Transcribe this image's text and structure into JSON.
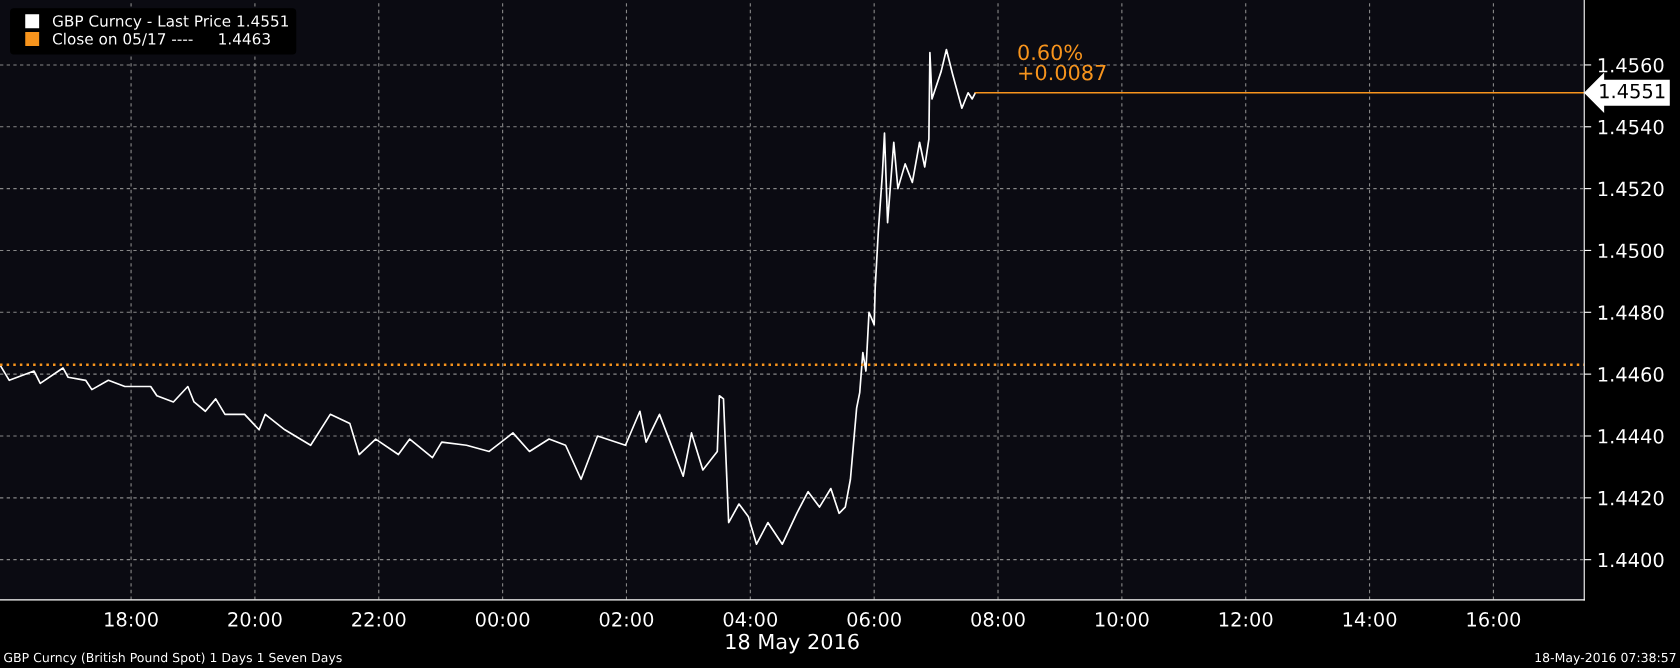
{
  "chart_data": {
    "type": "line",
    "x": [
      "2016-05-17T15:53",
      "2016-05-17T16:02",
      "2016-05-17T16:26",
      "2016-05-17T16:32",
      "2016-05-17T16:54",
      "2016-05-17T16:59",
      "2016-05-17T17:16",
      "2016-05-17T17:22",
      "2016-05-17T17:38",
      "2016-05-17T17:54",
      "2016-05-17T18:19",
      "2016-05-17T18:25",
      "2016-05-17T18:41",
      "2016-05-17T18:55",
      "2016-05-17T19:01",
      "2016-05-17T19:12",
      "2016-05-17T19:22",
      "2016-05-17T19:31",
      "2016-05-17T19:50",
      "2016-05-17T20:04",
      "2016-05-17T20:10",
      "2016-05-17T20:29",
      "2016-05-17T20:54",
      "2016-05-17T21:13",
      "2016-05-17T21:32",
      "2016-05-17T21:41",
      "2016-05-17T21:57",
      "2016-05-17T22:19",
      "2016-05-17T22:30",
      "2016-05-17T22:52",
      "2016-05-17T23:01",
      "2016-05-17T23:25",
      "2016-05-17T23:47",
      "2016-05-18T00:10",
      "2016-05-18T00:26",
      "2016-05-18T00:45",
      "2016-05-18T01:01",
      "2016-05-18T01:16",
      "2016-05-18T01:32",
      "2016-05-18T01:59",
      "2016-05-18T02:13",
      "2016-05-18T02:19",
      "2016-05-18T02:32",
      "2016-05-18T02:55",
      "2016-05-18T03:03",
      "2016-05-18T03:14",
      "2016-05-18T03:28",
      "2016-05-18T03:30",
      "2016-05-18T03:34",
      "2016-05-18T03:39",
      "2016-05-18T03:49",
      "2016-05-18T03:58",
      "2016-05-18T04:06",
      "2016-05-18T04:17",
      "2016-05-18T04:31",
      "2016-05-18T04:45",
      "2016-05-18T04:56",
      "2016-05-18T05:07",
      "2016-05-18T05:18",
      "2016-05-18T05:26",
      "2016-05-18T05:32",
      "2016-05-18T05:37",
      "2016-05-18T05:43",
      "2016-05-18T05:46",
      "2016-05-18T05:49",
      "2016-05-18T05:52",
      "2016-05-18T05:55",
      "2016-05-18T06:00",
      "2016-05-18T06:01",
      "2016-05-18T06:04",
      "2016-05-18T06:08",
      "2016-05-18T06:10",
      "2016-05-18T06:13",
      "2016-05-18T06:19",
      "2016-05-18T06:23",
      "2016-05-18T06:30",
      "2016-05-18T06:37",
      "2016-05-18T06:44",
      "2016-05-18T06:49",
      "2016-05-18T06:53",
      "2016-05-18T06:54",
      "2016-05-18T06:56",
      "2016-05-18T07:05",
      "2016-05-18T07:10",
      "2016-05-18T07:16",
      "2016-05-18T07:25",
      "2016-05-18T07:31",
      "2016-05-18T07:35",
      "2016-05-18T07:38"
    ],
    "series": [
      {
        "name": "GBP Curncy - Last Price 1.4551",
        "color": "#ffffff",
        "values": [
          1.4463,
          1.4458,
          1.4461,
          1.4457,
          1.4462,
          1.4459,
          1.4458,
          1.4455,
          1.4458,
          1.4456,
          1.4456,
          1.4453,
          1.4451,
          1.4456,
          1.4451,
          1.4448,
          1.4452,
          1.4447,
          1.4447,
          1.4442,
          1.4447,
          1.4442,
          1.4437,
          1.4447,
          1.4444,
          1.4434,
          1.4439,
          1.4434,
          1.4439,
          1.4433,
          1.4438,
          1.4437,
          1.4435,
          1.4441,
          1.4435,
          1.4439,
          1.4437,
          1.4426,
          1.444,
          1.4437,
          1.4448,
          1.4438,
          1.4447,
          1.4427,
          1.4441,
          1.4429,
          1.4435,
          1.4453,
          1.4452,
          1.4412,
          1.4418,
          1.4414,
          1.4405,
          1.4412,
          1.4405,
          1.4415,
          1.4422,
          1.4417,
          1.4423,
          1.4415,
          1.4417,
          1.4426,
          1.4449,
          1.4454,
          1.4467,
          1.4461,
          1.448,
          1.4476,
          1.4488,
          1.4506,
          1.4525,
          1.4538,
          1.4509,
          1.4535,
          1.452,
          1.4528,
          1.4522,
          1.4535,
          1.4527,
          1.4536,
          1.4564,
          1.4549,
          1.4558,
          1.4565,
          1.4557,
          1.4546,
          1.4551,
          1.4549,
          1.4551
        ]
      }
    ],
    "xlabel": "18 May 2016",
    "xlim": [
      "2016-05-17T15:53",
      "2016-05-18T17:28"
    ],
    "xticks": [
      {
        "value": "2016-05-17T18:00",
        "label": "18:00"
      },
      {
        "value": "2016-05-17T20:00",
        "label": "20:00"
      },
      {
        "value": "2016-05-17T22:00",
        "label": "22:00"
      },
      {
        "value": "2016-05-18T00:00",
        "label": "00:00"
      },
      {
        "value": "2016-05-18T02:00",
        "label": "02:00"
      },
      {
        "value": "2016-05-18T04:00",
        "label": "04:00"
      },
      {
        "value": "2016-05-18T06:00",
        "label": "06:00"
      },
      {
        "value": "2016-05-18T08:00",
        "label": "08:00"
      },
      {
        "value": "2016-05-18T10:00",
        "label": "10:00"
      },
      {
        "value": "2016-05-18T12:00",
        "label": "12:00"
      },
      {
        "value": "2016-05-18T14:00",
        "label": "14:00"
      },
      {
        "value": "2016-05-18T16:00",
        "label": "16:00"
      }
    ],
    "ylim": [
      1.4387,
      1.4581
    ],
    "yticks": [
      {
        "value": 1.44,
        "label": "1.4400"
      },
      {
        "value": 1.442,
        "label": "1.4420"
      },
      {
        "value": 1.444,
        "label": "1.4440"
      },
      {
        "value": 1.446,
        "label": "1.4460"
      },
      {
        "value": 1.448,
        "label": "1.4480"
      },
      {
        "value": 1.45,
        "label": "1.4500"
      },
      {
        "value": 1.452,
        "label": "1.4520"
      },
      {
        "value": 1.454,
        "label": "1.4540"
      },
      {
        "value": 1.456,
        "label": "1.4560"
      }
    ],
    "ref_lines": [
      {
        "axis": "y",
        "value": 1.4463,
        "label": "Close on 05/17 ----     1.4463",
        "color": "#f7941d",
        "line_style": "dotted"
      },
      {
        "axis": "y",
        "value": 1.4551,
        "color": "#f7941d",
        "line_style": "solid"
      }
    ],
    "annotations": [
      "0.60%",
      "+0.0087",
      "GBP Curncy (British Pound Spot) 1 Days 1 Seven Days",
      "18-May-2016 07:38:57",
      "1.4551"
    ],
    "grid": true,
    "legend": "top left"
  }
}
